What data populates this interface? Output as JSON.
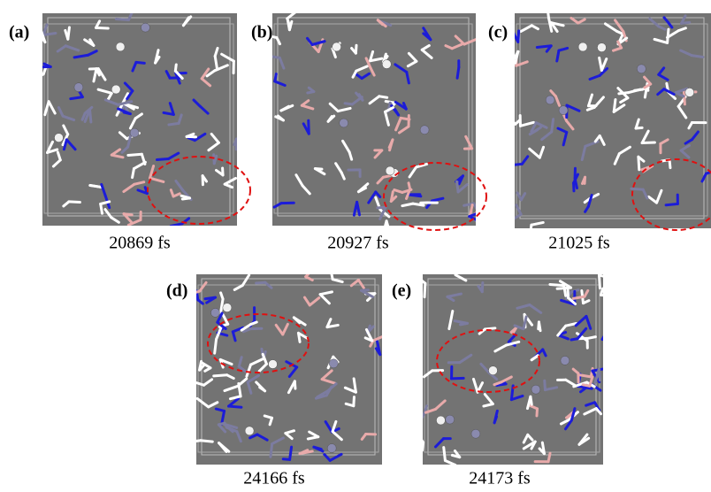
{
  "panels": [
    {
      "label": "(a)",
      "caption": "20869 fs"
    },
    {
      "label": "(b)",
      "caption": "20927 fs"
    },
    {
      "label": "(c)",
      "caption": "21025 fs"
    },
    {
      "label": "(d)",
      "caption": "24166 fs"
    },
    {
      "label": "(e)",
      "caption": "24173 fs"
    }
  ]
}
